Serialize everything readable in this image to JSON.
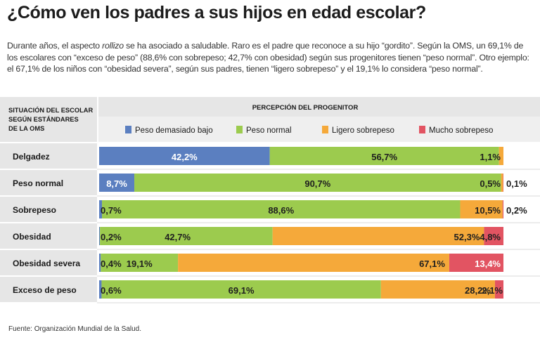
{
  "title": "¿Cómo ven los padres a sus hijos en edad escolar?",
  "intro": {
    "part1": "Durante años, el aspecto ",
    "italic": "rollizo",
    "part2": " se ha asociado a saludable. Raro es el padre que reconoce a su hijo “gordito”. Según la OMS, un 69,1% de los escolares con “exceso de peso” (88,6% con sobrepeso; 42,7% con obesidad) según sus progenitores tienen “peso normal”. Otro ejemplo: el 67,1% de los niños con “obesidad severa”, según sus padres, tienen “ligero sobrepeso” y el 19,1% lo considera “peso normal”."
  },
  "source": "Fuente: Organización Mundial de la Salud.",
  "chart_data": {
    "type": "bar",
    "orientation": "horizontal",
    "stacked": true,
    "row_header": "SITUACIÓN DEL ESCOLAR SEGÚN ESTÁNDARES DE LA OMS",
    "row_header_lines": [
      "SITUACIÓN DEL ESCOLAR",
      "SEGÚN ESTÁNDARES",
      "DE LA OMS"
    ],
    "column_header": "PERCEPCIÓN DEL PROGENITOR",
    "legend_position": "top",
    "categories": [
      "Delgadez",
      "Peso normal",
      "Sobrepeso",
      "Obesidad",
      "Obesidad severa",
      "Exceso de peso"
    ],
    "series": [
      {
        "name": "Peso demasiado bajo",
        "color": "#5b7fc0",
        "values": [
          42.2,
          8.7,
          0.7,
          0.2,
          0.4,
          0.6
        ]
      },
      {
        "name": "Peso normal",
        "color": "#9ccb4e",
        "values": [
          56.7,
          90.7,
          88.6,
          42.7,
          19.1,
          69.1
        ]
      },
      {
        "name": "Ligero sobrepeso",
        "color": "#f5a93a",
        "values": [
          1.1,
          0.5,
          10.5,
          52.3,
          67.1,
          28.2
        ]
      },
      {
        "name": "Mucho sobrepeso",
        "color": "#e25462",
        "values": [
          0,
          0.1,
          0.2,
          4.8,
          13.4,
          2.1
        ]
      }
    ],
    "data_labels": [
      [
        "42,2%",
        "56,7%",
        "1,1%",
        ""
      ],
      [
        "8,7%",
        "90,7%",
        "0,5%",
        "0,1%"
      ],
      [
        "0,7%",
        "88,6%",
        "10,5%",
        "0,2%"
      ],
      [
        "0,2%",
        "42,7%",
        "52,3%",
        "4,8%"
      ],
      [
        "0,4%",
        "19,1%",
        "67,1%",
        "13,4%"
      ],
      [
        "0,6%",
        "69,1%",
        "28,2%",
        "2,1%"
      ]
    ],
    "xlim": [
      0,
      100
    ]
  }
}
